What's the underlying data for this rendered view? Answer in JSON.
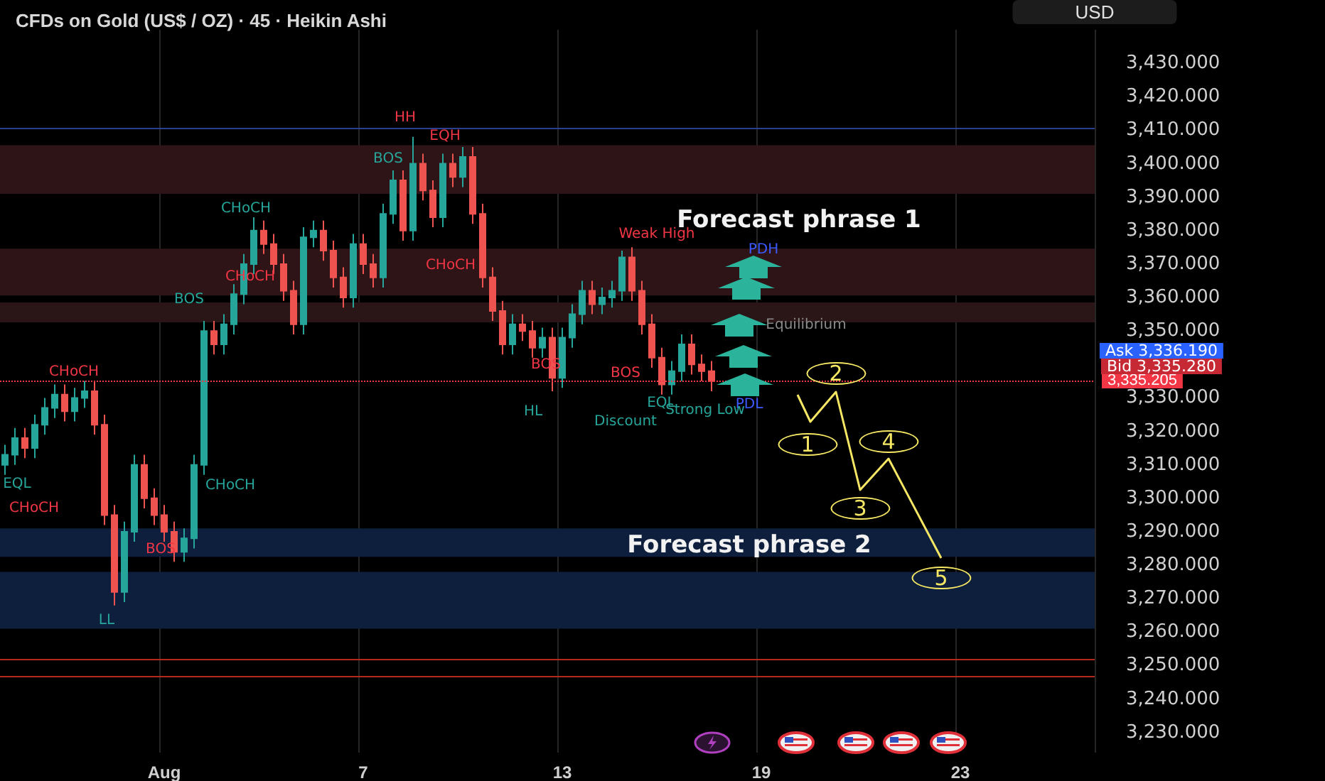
{
  "chart_data": {
    "type": "candlestick",
    "title": "CFDs on Gold (US$ / OZ) · 45 · Heikin Ashi",
    "ylabel": "USD",
    "categories": [
      null,
      null,
      null,
      null,
      null,
      null,
      null,
      null,
      null,
      null,
      null,
      null,
      null,
      null,
      null,
      null,
      "Aug",
      null,
      null,
      null,
      null,
      null,
      null,
      null,
      null,
      null,
      null,
      null,
      null,
      null,
      null,
      null,
      null,
      null,
      null,
      null,
      "7",
      null,
      null,
      null,
      null,
      null,
      null,
      null,
      null,
      null,
      null,
      null,
      null,
      null,
      null,
      null,
      null,
      null,
      null,
      null,
      "13",
      null,
      null,
      null,
      null,
      null,
      null,
      null,
      null,
      null,
      null,
      null,
      null,
      null,
      null,
      null,
      null,
      null,
      null,
      null,
      "19",
      null,
      null,
      null,
      null,
      null,
      null,
      null,
      null,
      null,
      null,
      null,
      null,
      null,
      null,
      null,
      null,
      null,
      null,
      null,
      "23",
      null,
      null,
      null,
      null,
      null,
      null,
      null,
      null,
      null,
      null,
      null,
      null,
      null
    ],
    "ohlc": [
      [
        3310,
        3316,
        3307,
        3313
      ],
      [
        3313,
        3321,
        3310,
        3318
      ],
      [
        3318,
        3321,
        3312,
        3315
      ],
      [
        3315,
        3325,
        3312,
        3322
      ],
      [
        3322,
        3330,
        3319,
        3327
      ],
      [
        3327,
        3334,
        3324,
        3331
      ],
      [
        3331,
        3334,
        3323,
        3326
      ],
      [
        3326,
        3333,
        3323,
        3330
      ],
      [
        3330,
        3335,
        3327,
        3332
      ],
      [
        3332,
        3335,
        3319,
        3322
      ],
      [
        3322,
        3325,
        3292,
        3295
      ],
      [
        3295,
        3298,
        3268,
        3272
      ],
      [
        3272,
        3293,
        3269,
        3290
      ],
      [
        3290,
        3313,
        3287,
        3310
      ],
      [
        3310,
        3313,
        3297,
        3300
      ],
      [
        3300,
        3303,
        3292,
        3295
      ],
      [
        3295,
        3298,
        3287,
        3290
      ],
      [
        3290,
        3293,
        3281,
        3284
      ],
      [
        3284,
        3291,
        3281,
        3288
      ],
      [
        3288,
        3313,
        3285,
        3310
      ],
      [
        3310,
        3353,
        3307,
        3350
      ],
      [
        3350,
        3353,
        3343,
        3346
      ],
      [
        3346,
        3355,
        3343,
        3352
      ],
      [
        3352,
        3364,
        3349,
        3361
      ],
      [
        3361,
        3373,
        3358,
        3370
      ],
      [
        3370,
        3384,
        3367,
        3380
      ],
      [
        3380,
        3383,
        3373,
        3376
      ],
      [
        3376,
        3379,
        3367,
        3370
      ],
      [
        3370,
        3373,
        3359,
        3362
      ],
      [
        3362,
        3365,
        3349,
        3352
      ],
      [
        3352,
        3381,
        3349,
        3378
      ],
      [
        3378,
        3383,
        3375,
        3380
      ],
      [
        3380,
        3383,
        3371,
        3374
      ],
      [
        3374,
        3377,
        3363,
        3366
      ],
      [
        3366,
        3369,
        3357,
        3360
      ],
      [
        3360,
        3379,
        3357,
        3376
      ],
      [
        3376,
        3379,
        3367,
        3370
      ],
      [
        3370,
        3373,
        3363,
        3366
      ],
      [
        3366,
        3388,
        3363,
        3385
      ],
      [
        3385,
        3398,
        3382,
        3395
      ],
      [
        3395,
        3398,
        3377,
        3380
      ],
      [
        3380,
        3408,
        3377,
        3400
      ],
      [
        3400,
        3403,
        3389,
        3392
      ],
      [
        3392,
        3395,
        3381,
        3384
      ],
      [
        3384,
        3403,
        3381,
        3400
      ],
      [
        3400,
        3403,
        3393,
        3396
      ],
      [
        3396,
        3405,
        3393,
        3402
      ],
      [
        3402,
        3405,
        3382,
        3385
      ],
      [
        3385,
        3388,
        3363,
        3366
      ],
      [
        3366,
        3369,
        3353,
        3356
      ],
      [
        3356,
        3359,
        3343,
        3346
      ],
      [
        3346,
        3355,
        3343,
        3352
      ],
      [
        3352,
        3355,
        3347,
        3350
      ],
      [
        3350,
        3353,
        3342,
        3345
      ],
      [
        3345,
        3351,
        3342,
        3348
      ],
      [
        3348,
        3351,
        3332,
        3336
      ],
      [
        3336,
        3351,
        3333,
        3348
      ],
      [
        3348,
        3358,
        3345,
        3355
      ],
      [
        3355,
        3365,
        3352,
        3362
      ],
      [
        3362,
        3365,
        3355,
        3358
      ],
      [
        3358,
        3363,
        3355,
        3360
      ],
      [
        3360,
        3365,
        3357,
        3362
      ],
      [
        3362,
        3374,
        3359,
        3372
      ],
      [
        3372,
        3375,
        3359,
        3362
      ],
      [
        3362,
        3365,
        3349,
        3352
      ],
      [
        3352,
        3355,
        3339,
        3342
      ],
      [
        3342,
        3345,
        3331,
        3334
      ],
      [
        3334,
        3341,
        3331,
        3338
      ],
      [
        3338,
        3349,
        3335,
        3346
      ],
      [
        3346,
        3349,
        3337,
        3340
      ],
      [
        3340,
        3343,
        3335,
        3338
      ],
      [
        3338,
        3341,
        3332,
        3335
      ],
      null,
      null,
      null,
      null,
      null,
      null,
      null,
      null,
      null,
      null,
      null,
      null,
      null,
      null,
      null,
      null,
      null,
      null,
      null,
      null,
      null,
      null,
      null,
      null,
      null,
      null,
      null,
      null,
      null,
      null,
      null,
      null,
      null,
      null,
      null,
      null,
      null,
      null
    ],
    "colors": [
      "#26a69a",
      "#26a69a",
      "#ef5350",
      "#26a69a",
      "#26a69a",
      "#26a69a",
      "#ef5350",
      "#26a69a",
      "#26a69a",
      "#ef5350",
      "#ef5350",
      "#ef5350",
      "#26a69a",
      "#26a69a",
      "#ef5350",
      "#ef5350",
      "#ef5350",
      "#ef5350",
      "#26a69a",
      "#26a69a",
      "#26a69a",
      "#ef5350",
      "#26a69a",
      "#26a69a",
      "#26a69a",
      "#26a69a",
      "#ef5350",
      "#ef5350",
      "#ef5350",
      "#ef5350",
      "#26a69a",
      "#26a69a",
      "#ef5350",
      "#ef5350",
      "#ef5350",
      "#26a69a",
      "#ef5350",
      "#ef5350",
      "#26a69a",
      "#26a69a",
      "#ef5350",
      "#26a69a",
      "#ef5350",
      "#ef5350",
      "#26a69a",
      "#ef5350",
      "#26a69a",
      "#ef5350",
      "#ef5350",
      "#ef5350",
      "#ef5350",
      "#26a69a",
      "#ef5350",
      "#ef5350",
      "#26a69a",
      "#ef5350",
      "#26a69a",
      "#26a69a",
      "#26a69a",
      "#ef5350",
      "#26a69a",
      "#26a69a",
      "#26a69a",
      "#ef5350",
      "#ef5350",
      "#ef5350",
      "#ef5350",
      "#26a69a",
      "#26a69a",
      "#ef5350",
      "#ef5350",
      "#ef5350",
      null,
      null,
      null,
      null,
      null,
      null,
      null,
      null,
      null,
      null,
      null,
      null,
      null,
      null,
      null,
      null,
      null,
      null,
      null,
      null,
      null,
      null,
      null,
      null,
      null,
      null,
      null,
      null,
      null,
      null,
      null,
      null,
      null,
      null,
      null,
      null,
      null,
      null
    ],
    "ylim": [
      3224,
      3440
    ],
    "yticks": [
      {
        "value": 3230,
        "label": "3,230.000"
      },
      {
        "value": 3240,
        "label": "3,240.000"
      },
      {
        "value": 3250,
        "label": "3,250.000"
      },
      {
        "value": 3260,
        "label": "3,260.000"
      },
      {
        "value": 3270,
        "label": "3,270.000"
      },
      {
        "value": 3280,
        "label": "3,280.000"
      },
      {
        "value": 3290,
        "label": "3,290.000"
      },
      {
        "value": 3300,
        "label": "3,300.000"
      },
      {
        "value": 3310,
        "label": "3,310.000"
      },
      {
        "value": 3320,
        "label": "3,320.000"
      },
      {
        "value": 3330,
        "label": "3,330.000"
      },
      {
        "value": 3350,
        "label": "3,350.000"
      },
      {
        "value": 3360,
        "label": "3,360.000"
      },
      {
        "value": 3370,
        "label": "3,370.000"
      },
      {
        "value": 3380,
        "label": "3,380.000"
      },
      {
        "value": 3390,
        "label": "3,390.000"
      },
      {
        "value": 3400,
        "label": "3,400.000"
      },
      {
        "value": 3410,
        "label": "3,410.000"
      },
      {
        "value": 3420,
        "label": "3,420.000"
      },
      {
        "value": 3430,
        "label": "3,430.000"
      }
    ],
    "grid": "x",
    "ref_lines": [
      {
        "axis": "y",
        "value": 3335.205,
        "label": "3,335.205",
        "color": "#f23645",
        "line_style": "dotted"
      },
      {
        "axis": "y",
        "value": 3410.5,
        "label": null,
        "color": "#2a3f8f",
        "line_style": "solid"
      },
      {
        "axis": "y",
        "value": 3252,
        "label": null,
        "color": "#b22a1c",
        "line_style": "solid"
      },
      {
        "axis": "y",
        "value": 3247,
        "label": null,
        "color": "#b22a1c",
        "line_style": "solid"
      }
    ],
    "bands": [
      {
        "axis": "y",
        "from": 3391,
        "to": 3405.5,
        "label": null,
        "color": "#2e1416"
      },
      {
        "axis": "y",
        "from": 3360.6,
        "to": 3374.6,
        "label": null,
        "color": "#2e1416"
      },
      {
        "axis": "y",
        "from": 3352.6,
        "to": 3358.5,
        "label": null,
        "color": "#2a1517"
      },
      {
        "axis": "y",
        "from": 3282.5,
        "to": 3291,
        "label": null,
        "color": "#0e1f3d"
      },
      {
        "axis": "y",
        "from": 3261,
        "to": 3278,
        "label": null,
        "color": "#0e1f3d"
      }
    ],
    "annotations": [
      "Forecast phrase 1",
      "Forecast phrase 2",
      "HH",
      "EQH",
      "LL",
      "HL",
      "PDH",
      "PDL",
      "Equilibrium",
      "Discount",
      "Strong Low",
      "Weak High",
      "CHoCH",
      "CHoCH",
      "CHoCH",
      "CHoCH",
      "CHoCH",
      "CHoCH",
      "BOS",
      "BOS",
      "BOS",
      "BOS",
      "BOS",
      "EQL",
      "EQL",
      "1",
      "2",
      "3",
      "4",
      "5",
      "Ask 3,336.190",
      "Bid 3,335.280"
    ]
  }
}
